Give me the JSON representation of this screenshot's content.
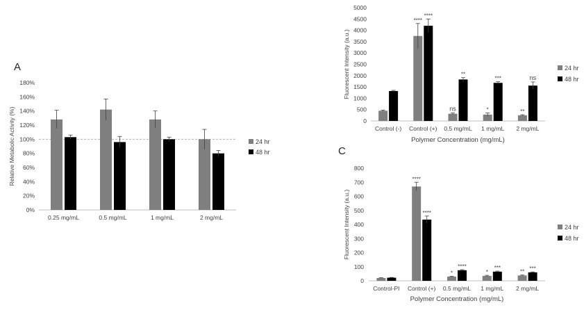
{
  "colors": {
    "series_24": "#7f7f7f",
    "series_48": "#000000",
    "axis": "#bfbfbf",
    "text": "#404040",
    "reference": "#a6a6a6"
  },
  "panel_labels": {
    "a": "A",
    "c": "C"
  },
  "chart_data": [
    {
      "id": "A",
      "type": "bar",
      "categories": [
        "0.25 mg/mL",
        "0.5 mg/mL",
        "1 mg/mL",
        "2 mg/mL"
      ],
      "series": [
        {
          "name": "24 hr",
          "values": [
            128,
            142,
            128,
            100
          ],
          "errors": [
            13,
            15,
            12,
            14
          ]
        },
        {
          "name": "48 hr",
          "values": [
            103,
            96,
            100,
            80
          ],
          "errors": [
            3,
            8,
            3,
            4
          ]
        }
      ],
      "ylabel": "Relative Metabolic Activity (%)",
      "xlabel": "",
      "ylim": [
        0,
        180
      ],
      "yticks": [
        "0%",
        "20%",
        "40%",
        "60%",
        "80%",
        "100%",
        "120%",
        "140%",
        "160%",
        "180%"
      ],
      "reference_line": 100,
      "legend": "right",
      "grid": false
    },
    {
      "id": "B",
      "type": "bar",
      "categories": [
        "Control (-)",
        "Control (+)",
        "0.5 mg/mL",
        "1 mg/mL",
        "2 mg/mL"
      ],
      "series": [
        {
          "name": "24 hr",
          "values": [
            450,
            3750,
            320,
            280,
            250
          ],
          "errors": [
            25,
            550,
            40,
            70,
            25
          ],
          "significance": [
            "",
            "****",
            "ns",
            "*",
            "**"
          ]
        },
        {
          "name": "48 hr",
          "values": [
            1320,
            4200,
            1830,
            1680,
            1560
          ],
          "errors": [
            30,
            300,
            80,
            50,
            160
          ],
          "significance": [
            "",
            "****",
            "**",
            "***",
            "ns"
          ]
        }
      ],
      "ylabel": "Fluorescent Intensity (a.u.)",
      "xlabel": "Polymer Concentration (mg/mL)",
      "ylim": [
        0,
        5000
      ],
      "yticks": [
        "0",
        "500",
        "1000",
        "1500",
        "2000",
        "2500",
        "3000",
        "3500",
        "4000",
        "4500",
        "5000"
      ],
      "legend": "right",
      "grid": false
    },
    {
      "id": "C",
      "type": "bar",
      "categories": [
        "Control-PI",
        "Control (+)",
        "0.5 mg/mL",
        "1 mg/mL",
        "2 mg/mL"
      ],
      "series": [
        {
          "name": "24 hr",
          "values": [
            20,
            670,
            30,
            35,
            38
          ],
          "errors": [
            2,
            30,
            3,
            4,
            3
          ],
          "significance": [
            "",
            "****",
            "*",
            "*",
            "**"
          ]
        },
        {
          "name": "48 hr",
          "values": [
            22,
            435,
            75,
            65,
            60
          ],
          "errors": [
            2,
            25,
            4,
            4,
            3
          ],
          "significance": [
            "",
            "****",
            "****",
            "***",
            "***"
          ]
        }
      ],
      "ylabel": "Fluorescent Intensity (a.u.)",
      "xlabel": "Polymer Concentration (mg/mL)",
      "ylim": [
        0,
        800
      ],
      "yticks": [
        "0",
        "100",
        "200",
        "300",
        "400",
        "500",
        "600",
        "700",
        "800"
      ],
      "legend": "right",
      "grid": false
    }
  ]
}
